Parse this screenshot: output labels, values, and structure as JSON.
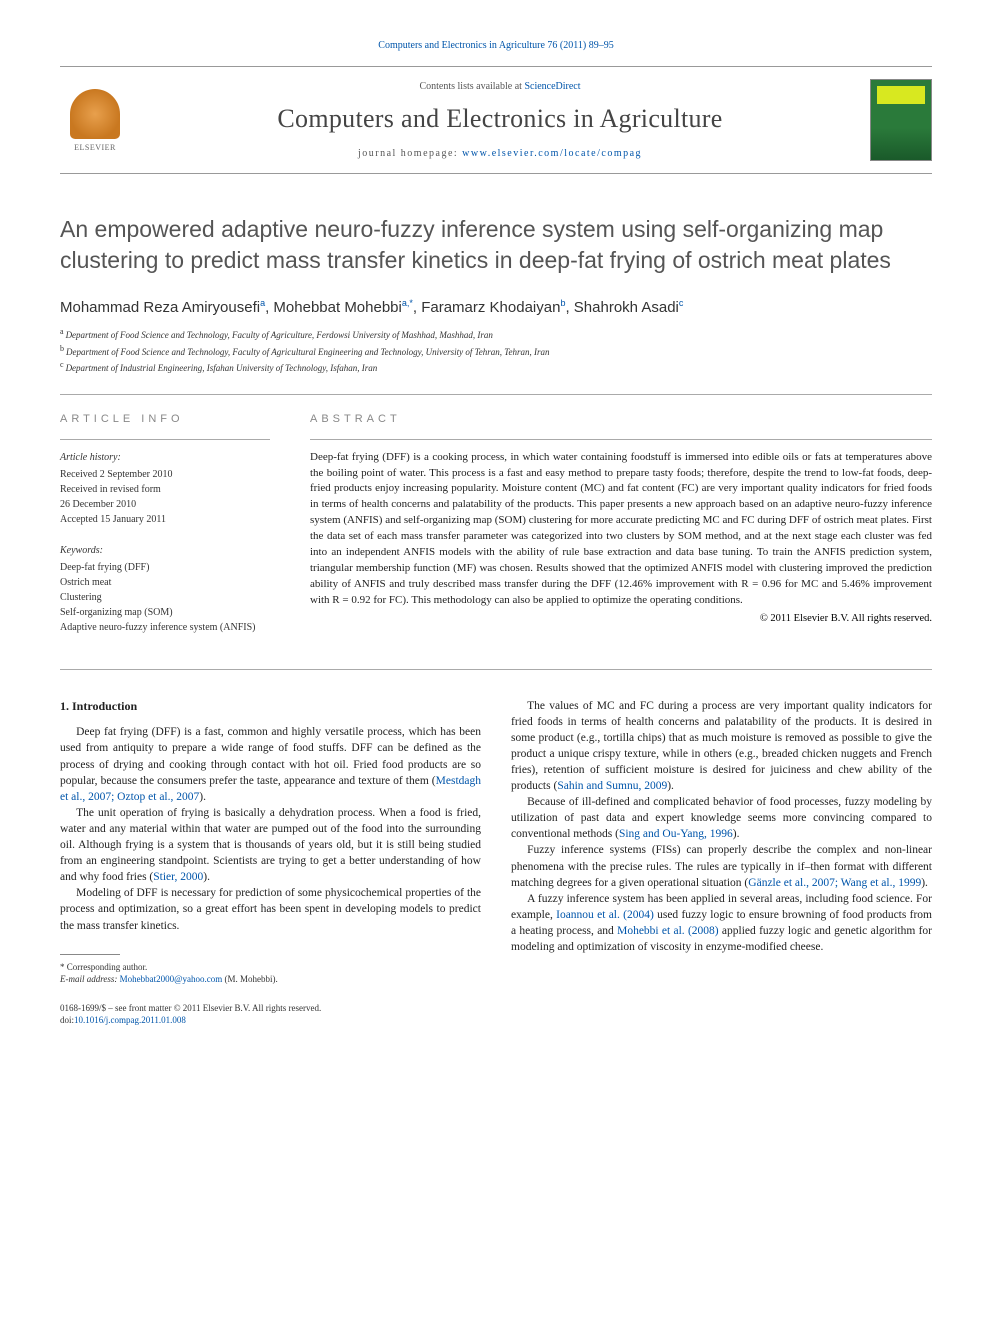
{
  "header": {
    "citation": "Computers and Electronics in Agriculture 76 (2011) 89–95",
    "contents_prefix": "Contents lists available at ",
    "contents_link": "ScienceDirect",
    "journal_title": "Computers and Electronics in Agriculture",
    "homepage_prefix": "journal homepage: ",
    "homepage_url": "www.elsevier.com/locate/compag",
    "publisher": "ELSEVIER"
  },
  "article": {
    "title": "An empowered adaptive neuro-fuzzy inference system using self-organizing map clustering to predict mass transfer kinetics in deep-fat frying of ostrich meat plates",
    "authors_html": "Mohammad Reza Amiryousefi<sup>a</sup>, Mohebbat Mohebbi<sup>a,*</sup>, Faramarz Khodaiyan<sup>b</sup>, Shahrokh Asadi<sup>c</sup>",
    "affiliations": {
      "a": "Department of Food Science and Technology, Faculty of Agriculture, Ferdowsi University of Mashhad, Mashhad, Iran",
      "b": "Department of Food Science and Technology, Faculty of Agricultural Engineering and Technology, University of Tehran, Tehran, Iran",
      "c": "Department of Industrial Engineering, Isfahan University of Technology, Isfahan, Iran"
    }
  },
  "info": {
    "heading": "ARTICLE INFO",
    "history_label": "Article history:",
    "history": {
      "received": "Received 2 September 2010",
      "revised1": "Received in revised form",
      "revised2": "26 December 2010",
      "accepted": "Accepted 15 January 2011"
    },
    "keywords_label": "Keywords:",
    "keywords": [
      "Deep-fat frying (DFF)",
      "Ostrich meat",
      "Clustering",
      "Self-organizing map (SOM)",
      "Adaptive neuro-fuzzy inference system (ANFIS)"
    ]
  },
  "abstract": {
    "heading": "ABSTRACT",
    "text": "Deep-fat frying (DFF) is a cooking process, in which water containing foodstuff is immersed into edible oils or fats at temperatures above the boiling point of water. This process is a fast and easy method to prepare tasty foods; therefore, despite the trend to low-fat foods, deep-fried products enjoy increasing popularity. Moisture content (MC) and fat content (FC) are very important quality indicators for fried foods in terms of health concerns and palatability of the products. This paper presents a new approach based on an adaptive neuro-fuzzy inference system (ANFIS) and self-organizing map (SOM) clustering for more accurate predicting MC and FC during DFF of ostrich meat plates. First the data set of each mass transfer parameter was categorized into two clusters by SOM method, and at the next stage each cluster was fed into an independent ANFIS models with the ability of rule base extraction and data base tuning. To train the ANFIS prediction system, triangular membership function (MF) was chosen. Results showed that the optimized ANFIS model with clustering improved the prediction ability of ANFIS and truly described mass transfer during the DFF (12.46% improvement with R = 0.96 for MC and 5.46% improvement with R = 0.92 for FC). This methodology can also be applied to optimize the operating conditions.",
    "copyright": "© 2011 Elsevier B.V. All rights reserved."
  },
  "body": {
    "section1_heading": "1. Introduction",
    "p1": "Deep fat frying (DFF) is a fast, common and highly versatile process, which has been used from antiquity to prepare a wide range of food stuffs. DFF can be defined as the process of drying and cooking through contact with hot oil. Fried food products are so popular, because the consumers prefer the taste, appearance and texture of them (",
    "p1_ref": "Mestdagh et al., 2007; Oztop et al., 2007",
    "p1_end": ").",
    "p2": "The unit operation of frying is basically a dehydration process. When a food is fried, water and any material within that water are pumped out of the food into the surrounding oil. Although frying is a system that is thousands of years old, but it is still being studied from an engineering standpoint. Scientists are trying to get a better understanding of how and why food fries (",
    "p2_ref": "Stier, 2000",
    "p2_end": ").",
    "p3": "Modeling of DFF is necessary for prediction of some physicochemical properties of the process and optimization, so a great effort has been spent in developing models to predict the mass transfer kinetics.",
    "p4": "The values of MC and FC during a process are very important quality indicators for fried foods in terms of health concerns and palatability of the products. It is desired in some product (e.g., tortilla chips) that as much moisture is removed as possible to give the product a unique crispy texture, while in others (e.g., breaded chicken nuggets and French fries), retention of sufficient moisture is desired for juiciness and chew ability of the products (",
    "p4_ref": "Sahin and Sumnu, 2009",
    "p4_end": ").",
    "p5": "Because of ill-defined and complicated behavior of food processes, fuzzy modeling by utilization of past data and expert knowledge seems more convincing compared to conventional methods (",
    "p5_ref": "Sing and Ou-Yang, 1996",
    "p5_end": ").",
    "p6": "Fuzzy inference systems (FISs) can properly describe the complex and non-linear phenomena with the precise rules. The rules are typically in if–then format with different matching degrees for a given operational situation (",
    "p6_ref": "Gänzle et al., 2007; Wang et al., 1999",
    "p6_end": ").",
    "p7": "A fuzzy inference system has been applied in several areas, including food science. For example, ",
    "p7_ref": "Ioannou et al. (2004)",
    "p7_mid": " used fuzzy logic to ensure browning of food products from a heating process, and ",
    "p7_ref2": "Mohebbi et al. (2008)",
    "p7_end": " applied fuzzy logic and genetic algorithm for modeling and optimization of viscosity in enzyme-modified cheese."
  },
  "footnotes": {
    "corr": "* Corresponding author.",
    "email_label": "E-mail address:",
    "email": "Mohebbat2000@yahoo.com",
    "email_person": " (M. Mohebbi)."
  },
  "footer": {
    "line1": "0168-1699/$ – see front matter © 2011 Elsevier B.V. All rights reserved.",
    "doi_label": "doi:",
    "doi": "10.1016/j.compag.2011.01.008"
  }
}
